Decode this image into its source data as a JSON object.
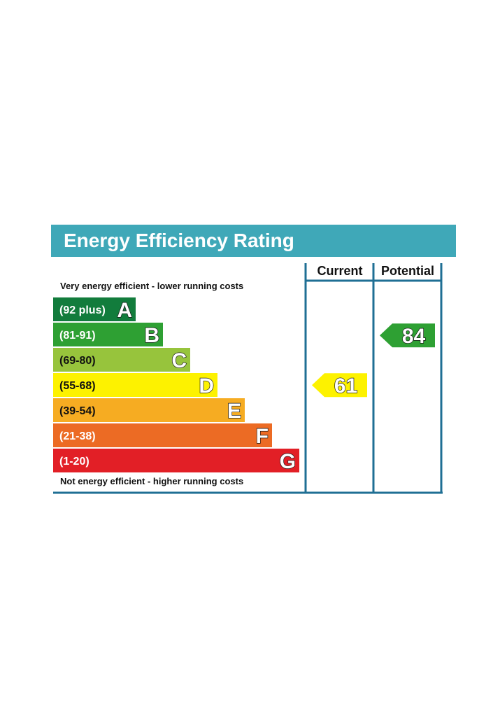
{
  "chart_data": {
    "type": "bar",
    "title": "Energy Efficiency Rating",
    "top_note": "Very energy efficient - lower running costs",
    "bottom_note": "Not energy efficient - higher running costs",
    "columns": [
      "Current",
      "Potential"
    ],
    "bands": [
      {
        "letter": "A",
        "range": "(92 plus)",
        "color": "#127c3c",
        "min": 92,
        "max": 100
      },
      {
        "letter": "B",
        "range": "(81-91)",
        "color": "#2ea033",
        "min": 81,
        "max": 91
      },
      {
        "letter": "C",
        "range": "(69-80)",
        "color": "#97c43c",
        "min": 69,
        "max": 80
      },
      {
        "letter": "D",
        "range": "(55-68)",
        "color": "#fdf200",
        "min": 55,
        "max": 68
      },
      {
        "letter": "E",
        "range": "(39-54)",
        "color": "#f6ac22",
        "min": 39,
        "max": 54
      },
      {
        "letter": "F",
        "range": "(21-38)",
        "color": "#ec6b24",
        "min": 21,
        "max": 38
      },
      {
        "letter": "G",
        "range": "(1-20)",
        "color": "#e21f26",
        "min": 1,
        "max": 20
      }
    ],
    "ratings": [
      {
        "column": "Current",
        "value": 61,
        "band": "D",
        "color": "#fdf200"
      },
      {
        "column": "Potential",
        "value": 84,
        "band": "B",
        "color": "#2ea033"
      }
    ]
  },
  "colors": {
    "title_bar": "#3fa8b8",
    "frame": "#1f6f94"
  }
}
